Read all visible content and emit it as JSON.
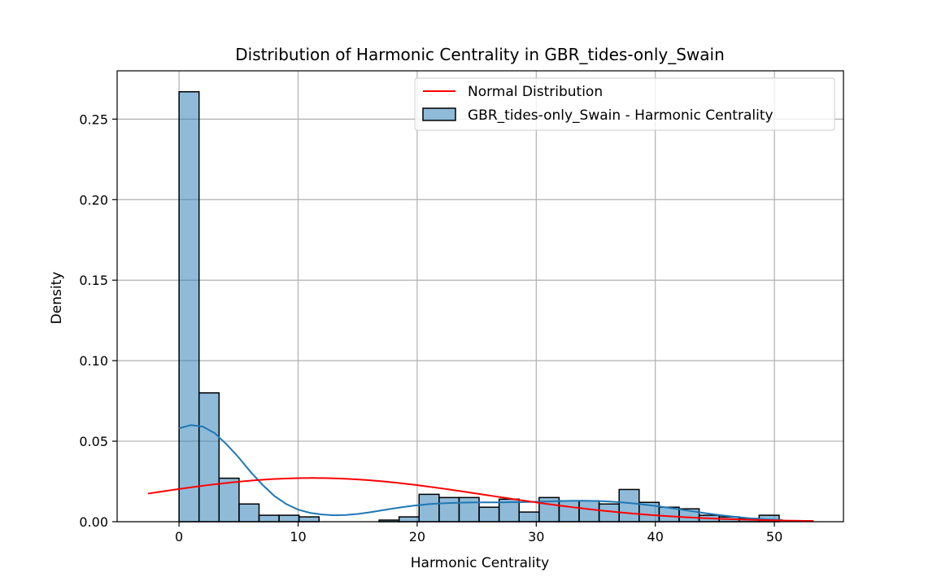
{
  "chart_data": {
    "type": "bar",
    "title": "Distribution of Harmonic Centrality in GBR_tides-only_Swain",
    "xlabel": "Harmonic Centrality",
    "ylabel": "Density",
    "xlim": [
      -5.2,
      55.8
    ],
    "ylim": [
      0,
      0.28
    ],
    "x_ticks": [
      0,
      10,
      20,
      30,
      40,
      50
    ],
    "x_tick_labels": [
      "0",
      "10",
      "20",
      "30",
      "40",
      "50"
    ],
    "y_ticks": [
      0,
      0.05,
      0.1,
      0.15,
      0.2,
      0.25
    ],
    "y_tick_labels": [
      "0.00",
      "0.05",
      "0.10",
      "0.15",
      "0.20",
      "0.25"
    ],
    "grid": true,
    "legend_position": "upper right",
    "histogram": {
      "name": "GBR_tides-only_Swain - Harmonic Centrality",
      "color": "#1f77b4",
      "bin_width": 1.68,
      "bin_start": 0,
      "densities": [
        0.267,
        0.08,
        0.027,
        0.011,
        0.004,
        0.004,
        0.003,
        0.0,
        0.0,
        0.0,
        0.001,
        0.003,
        0.017,
        0.015,
        0.015,
        0.009,
        0.014,
        0.006,
        0.015,
        0.013,
        0.013,
        0.011,
        0.02,
        0.012,
        0.009,
        0.008,
        0.004,
        0.003,
        0.002,
        0.004
      ]
    },
    "kde": {
      "color": "#1f77b4",
      "x": [
        0,
        1,
        2,
        3,
        4,
        5,
        6,
        7,
        8,
        9,
        10,
        11,
        12,
        13,
        14,
        15,
        16,
        17,
        18,
        19,
        20,
        21,
        22,
        23,
        24,
        25,
        26,
        27,
        28,
        29,
        30,
        31,
        32,
        33,
        34,
        35,
        36,
        37,
        38,
        39,
        40,
        41,
        42,
        43,
        44,
        45,
        46,
        47,
        48,
        49,
        50,
        50.7
      ],
      "y": [
        0.058,
        0.06,
        0.059,
        0.055,
        0.048,
        0.04,
        0.031,
        0.023,
        0.016,
        0.011,
        0.0075,
        0.0055,
        0.0045,
        0.004,
        0.0042,
        0.0048,
        0.0058,
        0.007,
        0.0082,
        0.0093,
        0.0102,
        0.0109,
        0.0114,
        0.0117,
        0.0119,
        0.012,
        0.012,
        0.012,
        0.0121,
        0.0122,
        0.0124,
        0.0126,
        0.0128,
        0.013,
        0.013,
        0.0129,
        0.0126,
        0.0121,
        0.0115,
        0.0107,
        0.0098,
        0.0088,
        0.0077,
        0.0066,
        0.0055,
        0.0045,
        0.0036,
        0.0028,
        0.0021,
        0.0016,
        0.0012,
        0.001
      ]
    },
    "normal": {
      "name": "Normal Distribution",
      "color": "#ff0000",
      "mean": 11.2,
      "std": 14.7,
      "x_range": [
        -2.6,
        53.3
      ]
    }
  }
}
